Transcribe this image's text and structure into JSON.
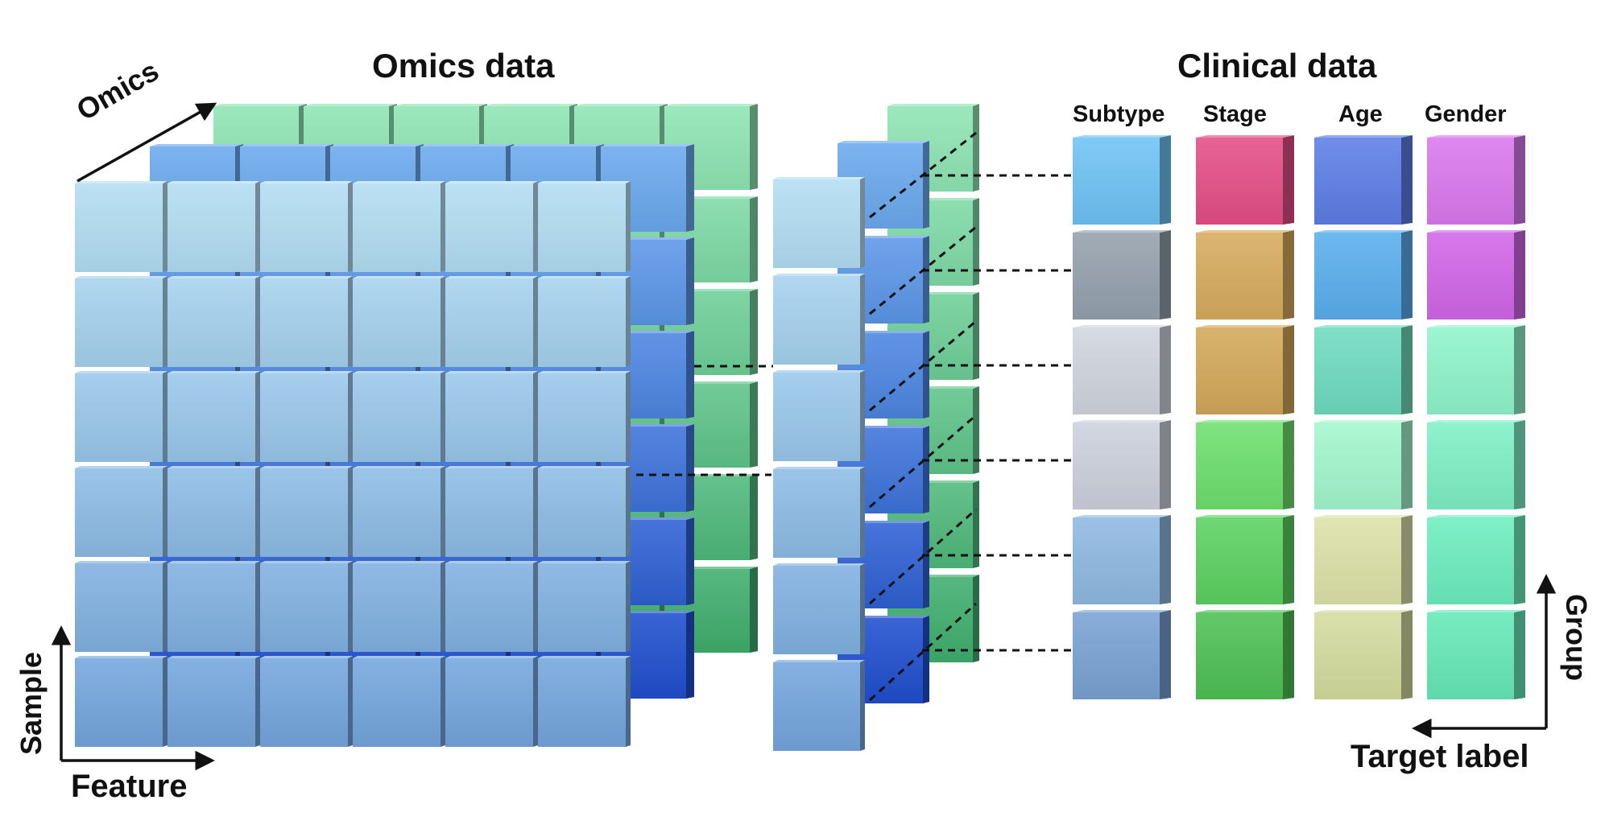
{
  "omics_title": "Omics data",
  "clinical_title": "Clinical data",
  "axes": {
    "omics": "Omics",
    "sample": "Sample",
    "feature": "Feature",
    "group": "Group",
    "target_label": "Target label"
  },
  "clinical_columns": [
    "Subtype",
    "Stage",
    "Age",
    "Gender"
  ],
  "omics_layers": [
    {
      "id": "layer-green",
      "colors": {
        "top": "#8ee5b4",
        "bottom": "#3fae6d"
      }
    },
    {
      "id": "layer-blue",
      "colors": {
        "top": "#6aa9ee",
        "bottom": "#1f4fce"
      }
    },
    {
      "id": "layer-light",
      "colors": {
        "top": "#b3ddf3",
        "bottom": "#74a6de"
      }
    }
  ],
  "clinical_cells": [
    [
      "#6fc3f5",
      "#e54e86",
      "#5c7ee6",
      "#db78ee"
    ],
    [
      "#94a1ad",
      "#d7ab5e",
      "#5aaeee",
      "#d266e8"
    ],
    [
      "#d0d5df",
      "#d4a859",
      "#6fdcbf",
      "#8ff5cb"
    ],
    [
      "#cdd1dd",
      "#6ee06e",
      "#a3f7cd",
      "#7ff0c6"
    ],
    [
      "#8fb9e1",
      "#5bd260",
      "#dde2a8",
      "#6deebf"
    ],
    [
      "#7aa2d4",
      "#4ec154",
      "#d4dc9e",
      "#66e8b8"
    ]
  ]
}
